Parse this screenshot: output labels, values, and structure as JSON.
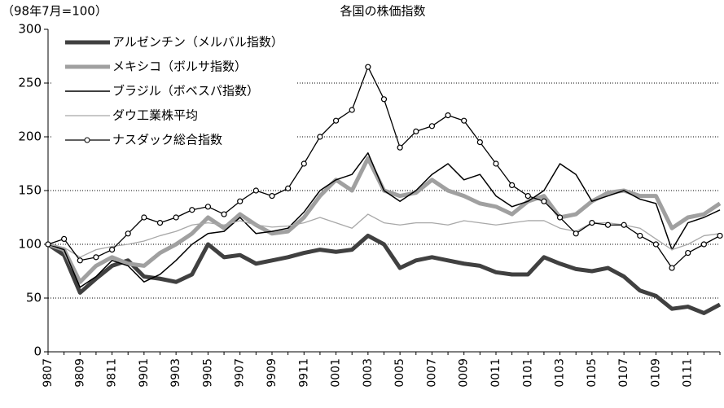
{
  "chart_data": {
    "type": "line",
    "title": "各国の株価指数",
    "y_label": "（98年7月=100）",
    "categories": [
      "9807",
      null,
      "9809",
      null,
      "9811",
      null,
      "9901",
      null,
      "9903",
      null,
      "9905",
      null,
      "9907",
      null,
      "9909",
      null,
      "9911",
      null,
      "0001",
      null,
      "0003",
      null,
      "0005",
      null,
      "0007",
      null,
      "0009",
      null,
      "0011",
      null,
      "0101",
      null,
      "0103",
      null,
      "0105",
      null,
      "0107",
      null,
      "0109",
      null,
      "0111",
      null,
      null
    ],
    "ylim": [
      0,
      300
    ],
    "yticks": [
      0,
      50,
      100,
      150,
      200,
      250,
      300
    ],
    "grid": true,
    "legend": "upper left",
    "series": [
      {
        "name": "アルゼンチン（メルバル指数）",
        "color": "#404040",
        "values": [
          100,
          90,
          55,
          68,
          80,
          85,
          70,
          68,
          65,
          72,
          100,
          88,
          90,
          82,
          85,
          88,
          92,
          95,
          93,
          95,
          108,
          100,
          78,
          85,
          88,
          85,
          82,
          80,
          74,
          72,
          72,
          88,
          82,
          77,
          75,
          78,
          70,
          57,
          52,
          40,
          42,
          36,
          44
        ]
      },
      {
        "name": "メキシコ（ボルサ指数）",
        "color": "#a0a0a0",
        "values": [
          100,
          95,
          65,
          80,
          88,
          82,
          80,
          92,
          100,
          110,
          125,
          115,
          128,
          118,
          110,
          112,
          125,
          145,
          160,
          150,
          180,
          150,
          145,
          148,
          160,
          150,
          145,
          138,
          135,
          128,
          140,
          145,
          125,
          128,
          140,
          148,
          150,
          145,
          145,
          115,
          125,
          128,
          138
        ]
      },
      {
        "name": "ブラジル（ボベスパ指数）",
        "color": "#000000",
        "values": [
          100,
          95,
          60,
          70,
          85,
          80,
          65,
          72,
          85,
          100,
          110,
          112,
          125,
          110,
          112,
          115,
          130,
          150,
          160,
          165,
          185,
          150,
          140,
          150,
          165,
          175,
          160,
          165,
          145,
          135,
          140,
          150,
          175,
          165,
          140,
          145,
          150,
          142,
          138,
          95,
          120,
          125,
          132
        ]
      },
      {
        "name": "ダウ工業株平均",
        "color": "#a8a8a8",
        "values": [
          100,
          97,
          88,
          95,
          98,
          100,
          103,
          108,
          112,
          118,
          120,
          118,
          122,
          118,
          116,
          117,
          120,
          125,
          120,
          115,
          128,
          120,
          118,
          120,
          120,
          118,
          122,
          120,
          118,
          120,
          122,
          122,
          115,
          112,
          120,
          120,
          118,
          115,
          105,
          95,
          100,
          108,
          110
        ]
      },
      {
        "name": "ナスダック総合指数",
        "color": "#000000",
        "marker": "o",
        "values": [
          100,
          105,
          85,
          88,
          95,
          110,
          125,
          120,
          125,
          132,
          135,
          128,
          140,
          150,
          145,
          152,
          175,
          200,
          215,
          225,
          265,
          235,
          190,
          205,
          210,
          220,
          215,
          195,
          175,
          155,
          145,
          140,
          125,
          110,
          120,
          118,
          118,
          108,
          100,
          78,
          92,
          100,
          108
        ]
      }
    ]
  }
}
